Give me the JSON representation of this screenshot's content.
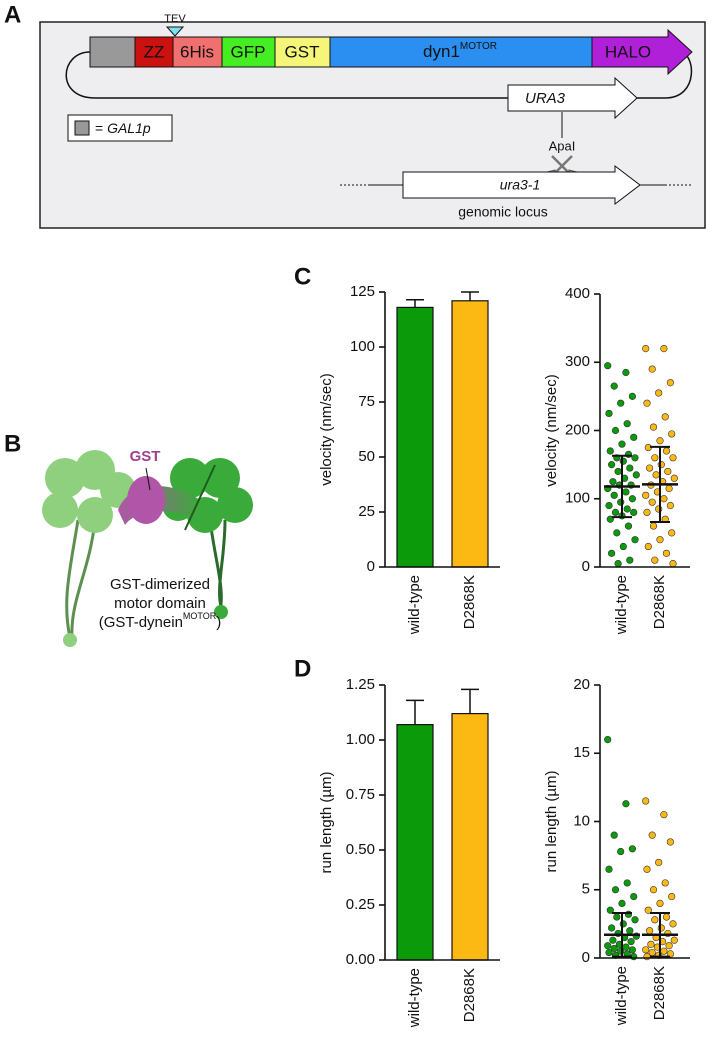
{
  "panel_labels": [
    "A",
    "B",
    "C",
    "D"
  ],
  "panel_a": {
    "tev": "TEV",
    "segments": [
      "ZZ",
      "6His",
      "GFP",
      "GST",
      "dyn1"
    ],
    "motor_sup": "MOTOR",
    "halo": "HALO",
    "marker": "URA3",
    "legend_prefix": "=",
    "legend_name": "GAL1p",
    "site": "ApaI",
    "locus_gene": "ura3-1",
    "locus_caption": "genomic locus"
  },
  "panel_b": {
    "gst": "GST",
    "caption_line1": "GST-dimerized",
    "caption_line2": "motor domain",
    "caption_line3": "(GST-dynein",
    "caption_sup": "MOTOR",
    "caption_end": ")"
  },
  "chart_data": [
    {
      "type": "bar",
      "ylabel": "velocity (nm/sec)",
      "categories": [
        "wild-type",
        "D2868K"
      ],
      "values": [
        118,
        121
      ],
      "errors": [
        3.5,
        4
      ],
      "colors": [
        "#0a9a0a",
        "#fdb913"
      ],
      "ylim": [
        0,
        125
      ],
      "yticks": [
        0,
        25,
        50,
        75,
        100,
        125
      ]
    },
    {
      "type": "strip",
      "ylabel": "velocity (nm/sec)",
      "categories": [
        "wild-type",
        "D2868K"
      ],
      "ylim": [
        0,
        400
      ],
      "yticks": [
        0,
        100,
        200,
        300,
        400
      ],
      "groups": [
        {
          "color": "#0a9a0a",
          "mean": 118,
          "sd": 45,
          "values": [
            295,
            285,
            265,
            250,
            240,
            225,
            210,
            200,
            190,
            180,
            170,
            165,
            160,
            160,
            155,
            150,
            145,
            140,
            135,
            130,
            125,
            120,
            120,
            115,
            110,
            105,
            100,
            95,
            90,
            85,
            80,
            80,
            75,
            70,
            60,
            50,
            40,
            30,
            20,
            10,
            5
          ]
        },
        {
          "color": "#fdb913",
          "mean": 121,
          "sd": 55,
          "values": [
            320,
            320,
            290,
            270,
            255,
            240,
            220,
            205,
            195,
            185,
            175,
            170,
            160,
            160,
            150,
            145,
            140,
            135,
            130,
            125,
            120,
            115,
            110,
            105,
            100,
            95,
            90,
            85,
            80,
            70,
            60,
            50,
            40,
            30,
            20,
            10,
            5
          ]
        }
      ]
    },
    {
      "type": "bar",
      "ylabel": "run length (µm)",
      "categories": [
        "wild-type",
        "D2868K"
      ],
      "values": [
        1.07,
        1.12
      ],
      "errors": [
        0.11,
        0.11
      ],
      "colors": [
        "#0a9a0a",
        "#fdb913"
      ],
      "ylim": [
        0,
        1.25
      ],
      "yticks": [
        {
          "value": 0,
          "label": "0.00"
        },
        {
          "value": 0.25,
          "label": "0.25"
        },
        {
          "value": 0.5,
          "label": "0.50"
        },
        {
          "value": 0.75,
          "label": "0.75"
        },
        {
          "value": 1,
          "label": "1.00"
        },
        {
          "value": 1.25,
          "label": "1.25"
        }
      ]
    },
    {
      "type": "strip",
      "ylabel": "run length (µm)",
      "categories": [
        "wild-type",
        "D2868K"
      ],
      "ylim": [
        0,
        20
      ],
      "yticks": [
        0,
        5,
        10,
        15,
        20
      ],
      "groups": [
        {
          "color": "#0a9a0a",
          "mean": 1.7,
          "sd": 1.6,
          "values": [
            16,
            11.3,
            9,
            8,
            7.8,
            6.5,
            5.5,
            5,
            4.5,
            4,
            3.5,
            3.2,
            3,
            2.8,
            2.5,
            2.2,
            2,
            1.8,
            1.6,
            1.5,
            1.3,
            1.2,
            1,
            0.9,
            0.8,
            0.7,
            0.6,
            0.5,
            0.4,
            0.3,
            0.2,
            0.1
          ]
        },
        {
          "color": "#fdb913",
          "mean": 1.7,
          "sd": 1.6,
          "values": [
            11.5,
            10.5,
            9,
            8.5,
            7,
            6.5,
            5.5,
            5,
            4.5,
            4,
            3.5,
            3,
            2.8,
            2.5,
            2.2,
            2,
            1.8,
            1.5,
            1.3,
            1.2,
            1,
            0.9,
            0.8,
            0.6,
            0.5,
            0.4,
            0.3,
            0.2,
            0.1
          ]
        }
      ]
    }
  ]
}
